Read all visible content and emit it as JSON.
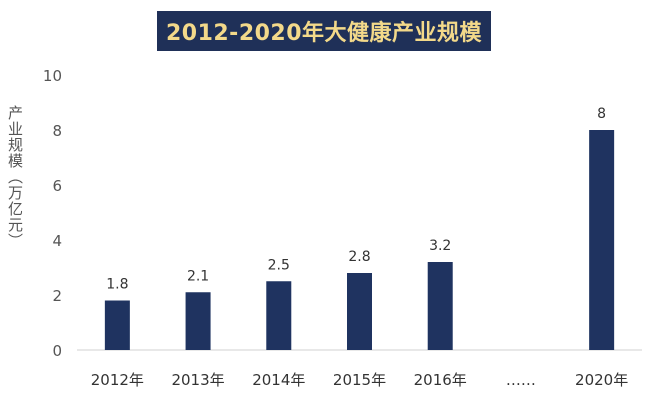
{
  "chart_data": {
    "type": "bar",
    "title": "2012-2020年大健康产业规模",
    "ylabel": "产业规模（万亿元）",
    "xlabel": "",
    "categories": [
      "2012年",
      "2013年",
      "2014年",
      "2015年",
      "2016年",
      "……",
      "2020年"
    ],
    "values": [
      1.8,
      2.1,
      2.5,
      2.8,
      3.2,
      null,
      8
    ],
    "data_labels": [
      "1.8",
      "2.1",
      "2.5",
      "2.8",
      "3.2",
      "",
      "8"
    ],
    "ylim": [
      0,
      10
    ],
    "yticks": [
      "0",
      "2",
      "4",
      "6",
      "8",
      "10"
    ],
    "grid": false,
    "legend": "none",
    "colors": {
      "bar": "#1f3360",
      "title_bg": "#1f3058",
      "title_text": "#f3d98a",
      "axis": "#d0d0d0",
      "tick_text": "#555555"
    }
  }
}
